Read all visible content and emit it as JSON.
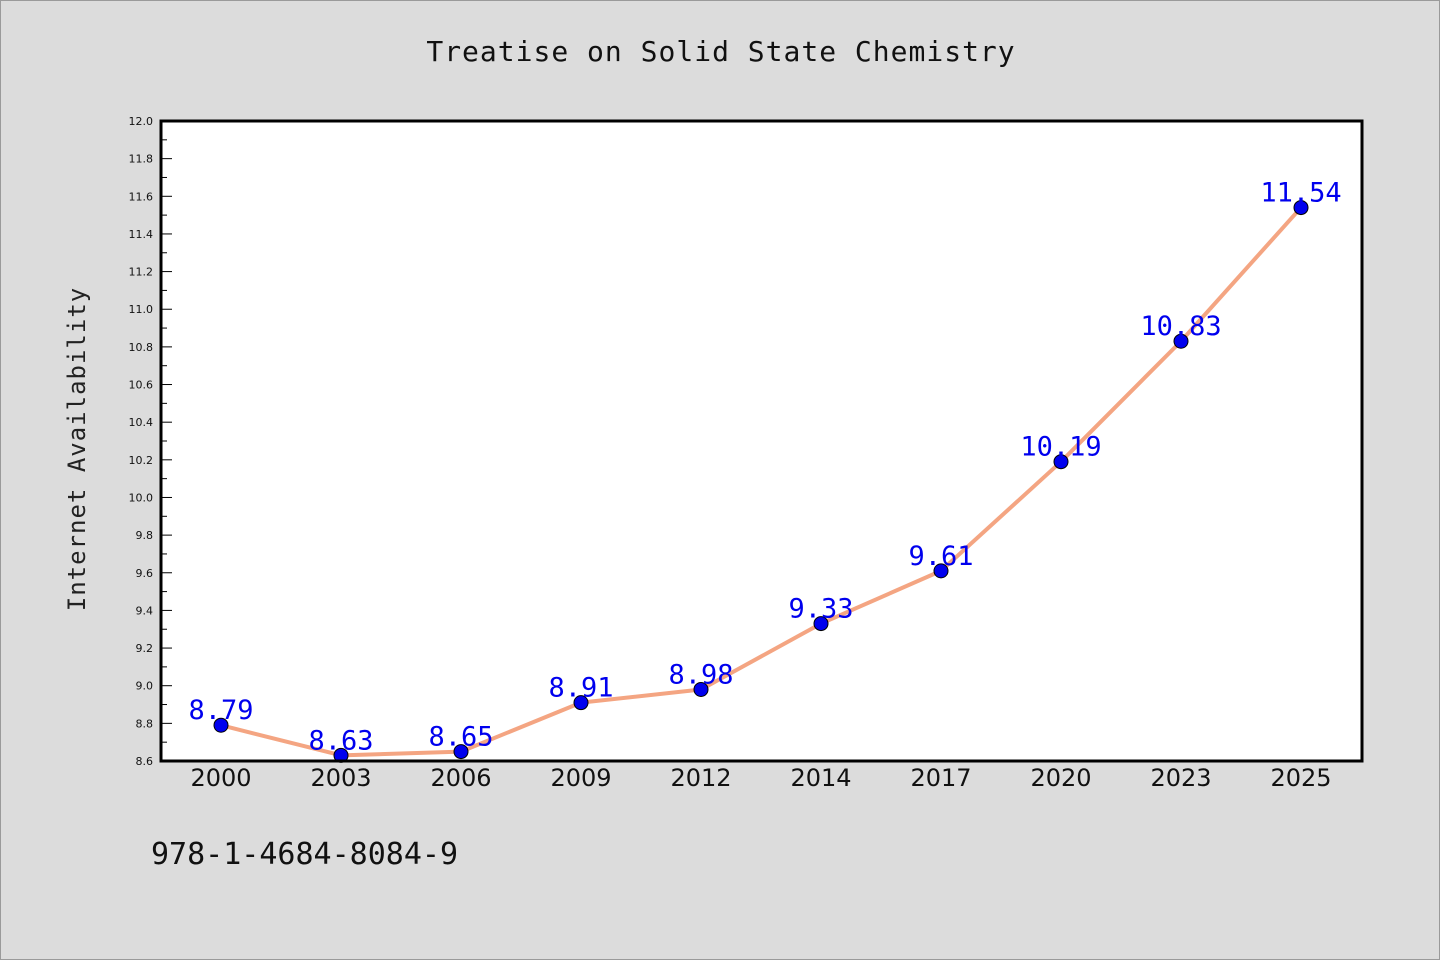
{
  "footnote": "978-1-4684-8084-9",
  "chart_data": {
    "type": "line",
    "title": "Treatise on Solid State Chemistry",
    "xlabel": "",
    "ylabel": "Internet Availability",
    "categories": [
      "2000",
      "2003",
      "2006",
      "2009",
      "2012",
      "2014",
      "2017",
      "2020",
      "2023",
      "2025"
    ],
    "series": [
      {
        "values": [
          8.79,
          8.63,
          8.65,
          8.91,
          8.98,
          9.33,
          9.61,
          10.19,
          10.83,
          11.54
        ],
        "line_color": "#f4a582",
        "marker_color": "#0000ee",
        "label_color": "#0000ee"
      }
    ],
    "data_labels": [
      "8.79",
      "8.63",
      "8.65",
      "8.91",
      "8.98",
      "9.33",
      "9.61",
      "10.19",
      "10.83",
      "11.54"
    ],
    "ylim": [
      8.6,
      12.0
    ],
    "yticks": [
      "8.6",
      "8.8",
      "9.0",
      "9.2",
      "9.4",
      "9.6",
      "9.8",
      "10.0",
      "10.2",
      "10.4",
      "10.6",
      "10.8",
      "11.0",
      "11.2",
      "11.4",
      "11.6",
      "11.8",
      "12.0"
    ],
    "grid": false,
    "legend": "none",
    "colors": {
      "figure_background": "#dcdcdc",
      "plot_background": "#ffffff",
      "axes": "#000000"
    }
  }
}
